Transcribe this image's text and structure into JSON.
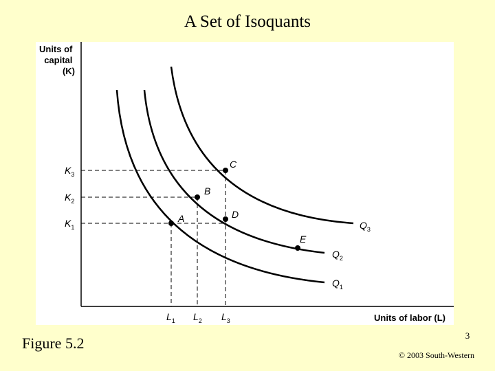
{
  "slide": {
    "title": "A Set of Isoquants",
    "figure_label": "Figure 5.2",
    "page_number": "3",
    "copyright": "© 2003 South-Western"
  },
  "diagram": {
    "y_axis_label": [
      "Units of",
      "capital",
      "(K)"
    ],
    "x_axis_label": "Units of labor (L)",
    "capital_ticks": [
      {
        "sym": "K",
        "sub": "3"
      },
      {
        "sym": "K",
        "sub": "2"
      },
      {
        "sym": "K",
        "sub": "1"
      }
    ],
    "labor_ticks": [
      {
        "sym": "L",
        "sub": "1"
      },
      {
        "sym": "L",
        "sub": "2"
      },
      {
        "sym": "L",
        "sub": "3"
      }
    ],
    "isoquants": [
      {
        "sym": "Q",
        "sub": "1"
      },
      {
        "sym": "Q",
        "sub": "2"
      },
      {
        "sym": "Q",
        "sub": "3"
      }
    ],
    "points": [
      "A",
      "B",
      "C",
      "D",
      "E"
    ]
  }
}
